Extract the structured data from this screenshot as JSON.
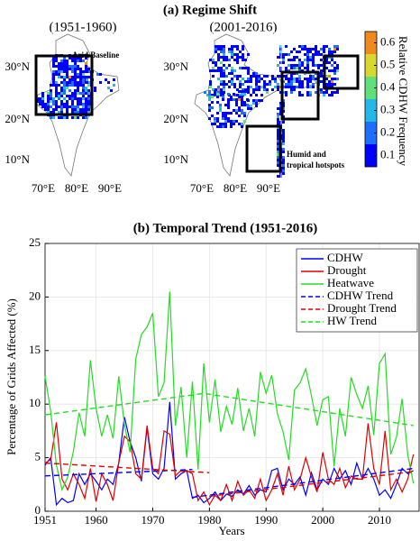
{
  "panel_a": {
    "title": "(a) Regime Shift",
    "maps": [
      {
        "title": "(1951-1960)",
        "lat_labels": [
          "30°N",
          "20°N",
          "10°N"
        ],
        "lon_labels": [
          "70°E",
          "80°E",
          "90°E"
        ],
        "annotation": [
          "Arid Baseline"
        ]
      },
      {
        "title": "(2001-2016)",
        "lat_labels": [
          "30°N",
          "20°N",
          "10°N"
        ],
        "lon_labels": [
          "70°E",
          "80°E",
          "90°E"
        ],
        "annotation": [
          "Humid and",
          "tropical hotspots"
        ]
      }
    ],
    "colorbar": {
      "label": "Relative CDHW Frequency",
      "lim": [
        0.05,
        0.65
      ],
      "ticks": [
        0.1,
        0.2,
        0.3,
        0.4,
        0.5,
        0.6
      ],
      "colors": [
        "#0000ff",
        "#1f6fff",
        "#22b8e8",
        "#5fe07a",
        "#d8d830",
        "#f08a1c"
      ]
    }
  },
  "chart_data": {
    "type": "line",
    "title": "(b) Temporal Trend (1951-2016)",
    "x_label": "Years",
    "y_label": "Percentage of Grids Affected (%)",
    "xlim": [
      1951,
      2017
    ],
    "xticks": [
      1951,
      1960,
      1970,
      1980,
      1990,
      2000,
      2010
    ],
    "ylim": [
      0,
      25
    ],
    "yticks": [
      0,
      5,
      10,
      15,
      20,
      25
    ],
    "grid": true,
    "legend": "upper right",
    "x": [
      1951,
      1952,
      1953,
      1954,
      1955,
      1956,
      1957,
      1958,
      1959,
      1960,
      1961,
      1962,
      1963,
      1964,
      1965,
      1966,
      1967,
      1968,
      1969,
      1970,
      1971,
      1972,
      1973,
      1974,
      1975,
      1976,
      1977,
      1978,
      1979,
      1980,
      1981,
      1982,
      1983,
      1984,
      1985,
      1986,
      1987,
      1988,
      1989,
      1990,
      1991,
      1992,
      1993,
      1994,
      1995,
      1996,
      1997,
      1998,
      1999,
      2000,
      2001,
      2002,
      2003,
      2004,
      2005,
      2006,
      2007,
      2008,
      2009,
      2010,
      2011,
      2012,
      2013,
      2014,
      2015,
      2016
    ],
    "series": [
      {
        "name": "CDHW",
        "color": "#0000ff",
        "dash": false,
        "values": [
          4.3,
          5.0,
          0.6,
          1.2,
          0.8,
          1.0,
          3.5,
          2.5,
          3.5,
          2.8,
          2.0,
          3.0,
          2.5,
          4.5,
          8.8,
          6.5,
          5.0,
          2.8,
          7.8,
          3.5,
          3.0,
          4.0,
          10.2,
          3.0,
          3.5,
          3.8,
          1.2,
          1.5,
          0.8,
          1.2,
          1.8,
          1.0,
          1.6,
          1.4,
          2.0,
          1.6,
          2.4,
          1.5,
          2.0,
          1.8,
          3.8,
          4.0,
          2.0,
          3.0,
          2.5,
          3.2,
          1.5,
          3.6,
          2.0,
          3.0,
          2.5,
          4.0,
          3.0,
          3.8,
          2.5,
          4.5,
          3.0,
          4.0,
          3.0,
          1.5,
          2.0,
          1.2,
          2.5,
          4.0,
          3.5,
          3.8
        ]
      },
      {
        "name": "Drought",
        "color": "#e00000",
        "dash": false,
        "values": [
          4.5,
          4.8,
          8.3,
          3.0,
          2.0,
          3.5,
          2.5,
          1.2,
          4.0,
          0.9,
          3.5,
          2.5,
          1.0,
          4.5,
          7.0,
          6.5,
          3.5,
          3.0,
          8.0,
          4.0,
          3.5,
          7.5,
          7.2,
          3.3,
          3.8,
          3.8,
          3.5,
          1.0,
          1.8,
          0.6,
          1.5,
          1.0,
          2.5,
          1.0,
          2.8,
          1.5,
          2.0,
          1.2,
          3.0,
          1.0,
          2.0,
          3.5,
          1.5,
          4.2,
          2.0,
          3.0,
          5.0,
          3.2,
          1.8,
          5.5,
          3.0,
          2.5,
          4.0,
          2.2,
          3.3,
          3.0,
          3.0,
          8.2,
          4.0,
          2.5,
          7.5,
          2.0,
          3.0,
          1.8,
          3.0,
          5.3
        ]
      },
      {
        "name": "Heatwave",
        "color": "#22dd22",
        "dash": false,
        "values": [
          12.6,
          9.3,
          4.3,
          2.0,
          3.2,
          5.6,
          9.2,
          7.0,
          14.1,
          9.6,
          7.0,
          9.0,
          6.8,
          12.6,
          8.1,
          5.5,
          14.2,
          16.5,
          17.2,
          18.5,
          10.7,
          12.0,
          20.5,
          8.0,
          11.6,
          5.0,
          12.1,
          3.9,
          13.8,
          8.3,
          12.3,
          7.4,
          9.8,
          8.1,
          11.5,
          7.5,
          9.6,
          7.0,
          13.0,
          11.0,
          12.7,
          9.1,
          7.4,
          4.8,
          11.3,
          12.0,
          13.3,
          10.8,
          8.0,
          10.4,
          10.7,
          4.2,
          9.6,
          7.0,
          12.5,
          10.9,
          9.6,
          11.7,
          7.1,
          13.8,
          14.7,
          5.3,
          6.9,
          10.5,
          5.3,
          2.6
        ]
      },
      {
        "name": "CDHW Trend",
        "color": "#0000ff",
        "dash": true,
        "x": [
          1951,
          1977,
          1977,
          1977,
          2016
        ],
        "values": [
          3.3,
          3.9,
          null,
          1.3,
          4.0
        ]
      },
      {
        "name": "Drought Trend",
        "color": "#e00000",
        "dash": true,
        "x": [
          1951,
          1980,
          1980,
          1980,
          2016
        ],
        "values": [
          4.5,
          3.6,
          null,
          1.4,
          3.7
        ]
      },
      {
        "name": "HW Trend",
        "color": "#22dd22",
        "dash": true,
        "x": [
          1951,
          1979,
          2016
        ],
        "values": [
          9.0,
          11.0,
          8.0
        ]
      }
    ]
  }
}
